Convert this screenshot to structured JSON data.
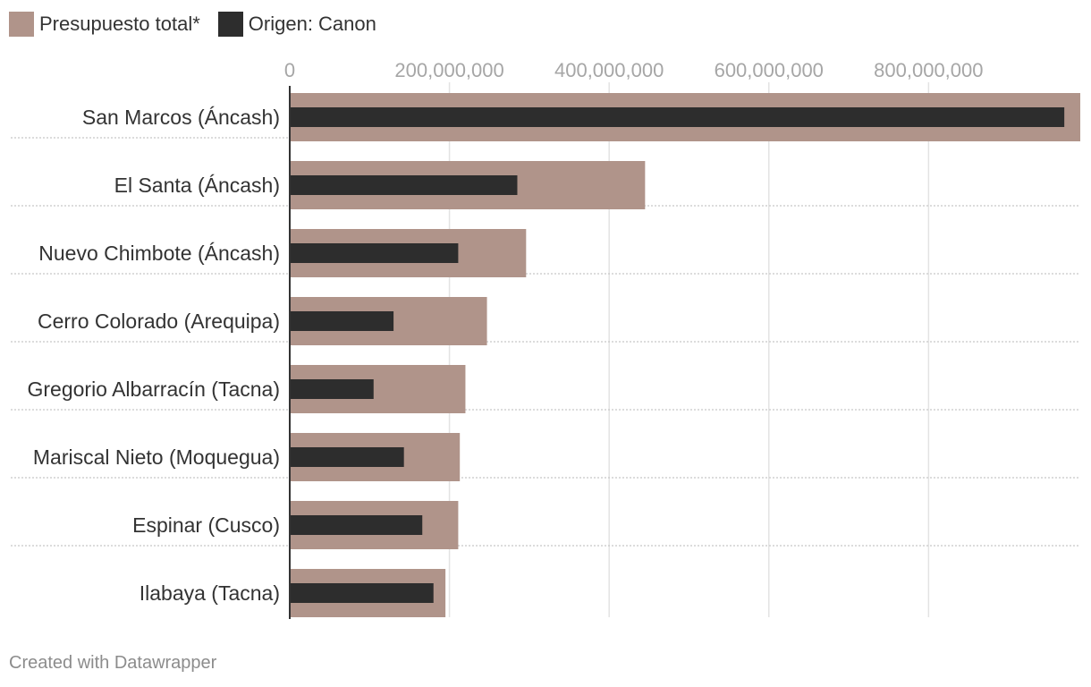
{
  "legend": [
    {
      "label": "Presupuesto total*",
      "color": "#b0948a"
    },
    {
      "label": "Origen: Canon",
      "color": "#2d2d2d"
    }
  ],
  "chart_data": {
    "type": "bar",
    "orientation": "horizontal",
    "title": "",
    "xlabel": "",
    "ylabel": "",
    "xlim": [
      0,
      990000000
    ],
    "ticks": [
      0,
      200000000,
      400000000,
      600000000,
      800000000
    ],
    "tick_labels": [
      "0",
      "200,000,000",
      "400,000,000",
      "600,000,000",
      "800,000,000"
    ],
    "grid": true,
    "legend_position": "top-left",
    "categories": [
      "San Marcos (Áncash)",
      "El Santa (Áncash)",
      "Nuevo Chimbote (Áncash)",
      "Cerro Colorado (Arequipa)",
      "Gregorio Albarracín (Tacna)",
      "Mariscal Nieto (Moquegua)",
      "Espinar (Cusco)",
      "Ilabaya (Tacna)"
    ],
    "series": [
      {
        "name": "Presupuesto total*",
        "color": "#b0948a",
        "values": [
          990000000,
          445000000,
          296000000,
          247000000,
          220000000,
          213000000,
          211000000,
          195000000
        ]
      },
      {
        "name": "Origen: Canon",
        "color": "#2d2d2d",
        "values": [
          970000000,
          285000000,
          211000000,
          130000000,
          105000000,
          143000000,
          166000000,
          180000000
        ]
      }
    ]
  },
  "footer": "Created with Datawrapper"
}
